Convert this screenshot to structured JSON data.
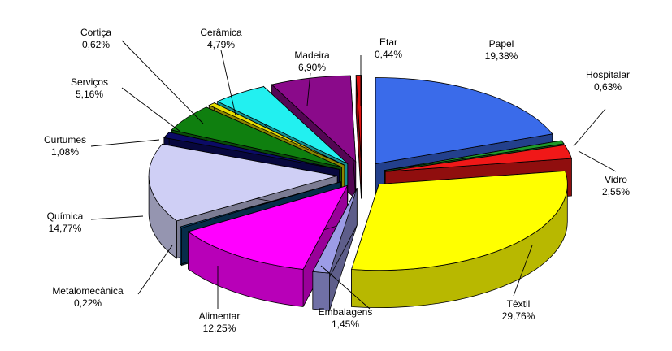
{
  "chart_data": {
    "type": "pie",
    "style": "3d-exploded",
    "title": "",
    "slices": [
      {
        "name": "Papel",
        "value": 19.38,
        "pct": "19,38%",
        "color": "#3A6BEA"
      },
      {
        "name": "Hospitalar",
        "value": 0.63,
        "pct": "0,63%",
        "color": "#1F9A2A"
      },
      {
        "name": "Vidro",
        "value": 2.55,
        "pct": "2,55%",
        "color": "#F01818"
      },
      {
        "name": "Têxtil",
        "value": 29.76,
        "pct": "29,76%",
        "color": "#FFFF00"
      },
      {
        "name": "Embalagens",
        "value": 1.45,
        "pct": "1,45%",
        "color": "#9C9CE6"
      },
      {
        "name": "Alimentar",
        "value": 12.25,
        "pct": "12,25%",
        "color": "#FF00FF"
      },
      {
        "name": "Metalomecânica",
        "value": 0.22,
        "pct": "0,22%",
        "color": "#0A4A7A"
      },
      {
        "name": "Química",
        "value": 14.77,
        "pct": "14,77%",
        "color": "#CFCFF5"
      },
      {
        "name": "Curtumes",
        "value": 1.08,
        "pct": "1,08%",
        "color": "#0B0B66"
      },
      {
        "name": "Serviços",
        "value": 5.16,
        "pct": "5,16%",
        "color": "#0F7F0F"
      },
      {
        "name": "Cortiça",
        "value": 0.62,
        "pct": "0,62%",
        "color": "#E8E000"
      },
      {
        "name": "Cerâmica",
        "value": 4.79,
        "pct": "4,79%",
        "color": "#22F0F0"
      },
      {
        "name": "Madeira",
        "value": 6.9,
        "pct": "6,90%",
        "color": "#8A0A8A"
      },
      {
        "name": "Etar",
        "value": 0.44,
        "pct": "0,44%",
        "color": "#E01010"
      }
    ]
  }
}
